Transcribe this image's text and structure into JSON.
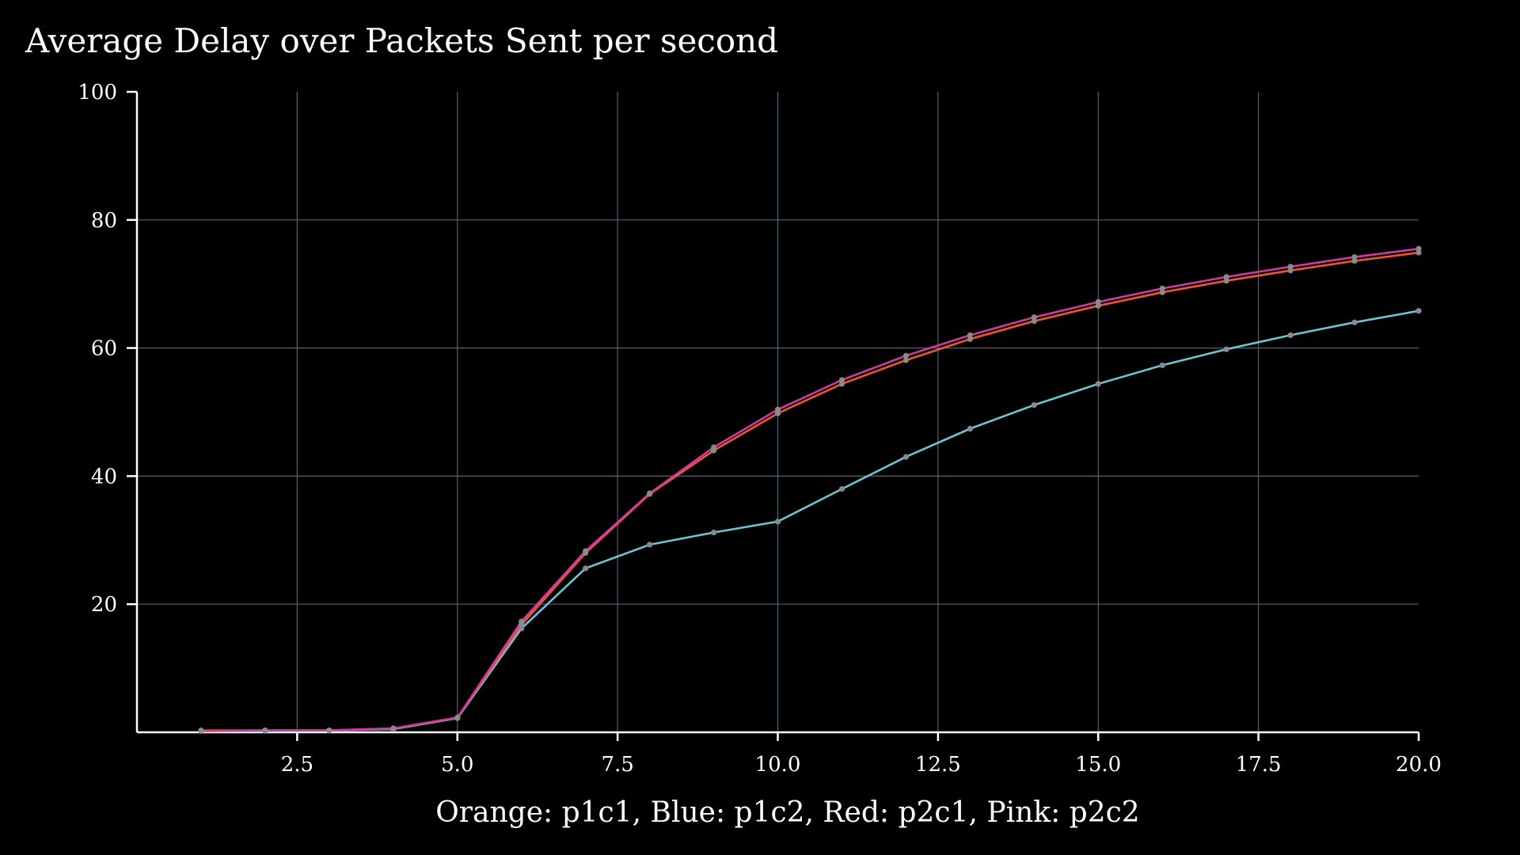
{
  "chart_data": {
    "type": "line",
    "title": "Average Delay over Packets Sent per second",
    "xlabel": "Orange: p1c1, Blue: p1c2, Red: p2c1, Pink: p2c2",
    "ylabel": "",
    "xlim": [
      0.0,
      20.0
    ],
    "ylim": [
      0,
      100
    ],
    "x_ticks": [
      "2.5",
      "5.0",
      "7.5",
      "10.0",
      "12.5",
      "15.0",
      "17.5",
      "20.0"
    ],
    "x_tick_values": [
      2.5,
      5.0,
      7.5,
      10.0,
      12.5,
      15.0,
      17.5,
      20.0
    ],
    "y_ticks": [
      "20",
      "40",
      "60",
      "80",
      "100"
    ],
    "y_tick_values": [
      20,
      40,
      60,
      80,
      100
    ],
    "grid": true,
    "background_color": "#000000",
    "point_color": "#8a8a8a",
    "x": [
      1,
      2,
      3,
      4,
      5,
      6,
      7,
      8,
      9,
      10,
      11,
      12,
      13,
      14,
      15,
      16,
      17,
      18,
      19,
      20
    ],
    "series": [
      {
        "color": "#6ec3d2",
        "values": [
          0.2,
          0.2,
          0.3,
          0.5,
          2.2,
          16.2,
          25.6,
          29.3,
          31.2,
          32.9,
          38.0,
          43.0,
          47.4,
          51.1,
          54.4,
          57.3,
          59.8,
          62.0,
          64.0,
          65.8
        ]
      },
      {
        "color": "#f0552e",
        "values": [
          0.2,
          0.3,
          0.3,
          0.6,
          2.3,
          16.8,
          28.0,
          37.2,
          44.0,
          49.8,
          54.4,
          58.1,
          61.4,
          64.2,
          66.6,
          68.7,
          70.5,
          72.1,
          73.6,
          74.9
        ]
      },
      {
        "color": "#d0399e",
        "values": [
          0.3,
          0.3,
          0.3,
          0.6,
          2.3,
          17.3,
          28.3,
          37.3,
          44.5,
          50.4,
          55.0,
          58.8,
          62.0,
          64.8,
          67.2,
          69.3,
          71.1,
          72.7,
          74.2,
          75.5
        ]
      }
    ]
  }
}
